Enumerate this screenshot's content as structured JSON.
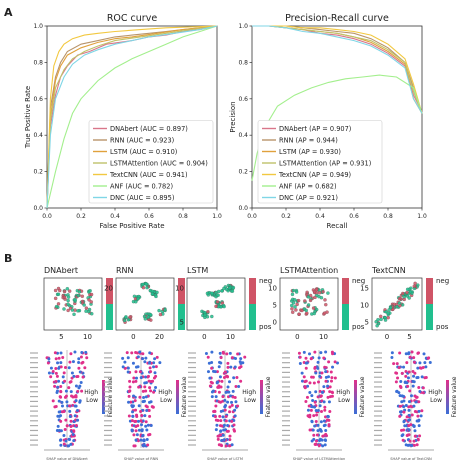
{
  "panel_a_label": "A",
  "panel_b_label": "B",
  "colors": {
    "DNAbert": "#d9768a",
    "RNN": "#b8946a",
    "LSTM": "#e0a13c",
    "LSTMAttention": "#bfc26a",
    "TextCNN": "#f2c840",
    "ANF": "#a3ef8d",
    "DNC": "#7fd6e6",
    "neg": "#cf5466",
    "pos": "#21bf8e",
    "dot_blue": "#3b6fd6",
    "dot_pink": "#e0308a"
  },
  "chart_data": [
    {
      "type": "line",
      "title": "ROC curve",
      "xlabel": "False Positive Rate",
      "ylabel": "True Positive Rate",
      "xlim": [
        0,
        1
      ],
      "ylim": [
        0,
        1
      ],
      "xticks": [
        "0.0",
        "0.2",
        "0.4",
        "0.6",
        "0.8",
        "1.0"
      ],
      "yticks": [
        "0.0",
        "0.2",
        "0.4",
        "0.6",
        "0.8",
        "1.0"
      ],
      "legend_placement": "lower-right",
      "series": [
        {
          "name": "DNAbert (AUC = 0.897)",
          "key": "DNAbert",
          "x": [
            0,
            0.02,
            0.05,
            0.08,
            0.12,
            0.18,
            0.25,
            0.35,
            0.5,
            0.6,
            0.7,
            0.8,
            0.9,
            1.0
          ],
          "y": [
            0,
            0.45,
            0.62,
            0.72,
            0.78,
            0.84,
            0.86,
            0.9,
            0.92,
            0.94,
            0.95,
            0.97,
            0.98,
            1.0
          ]
        },
        {
          "name": "RNN (AUC = 0.923)",
          "key": "RNN",
          "x": [
            0,
            0.02,
            0.05,
            0.08,
            0.12,
            0.2,
            0.3,
            0.4,
            0.5,
            0.6,
            0.7,
            0.8,
            1.0
          ],
          "y": [
            0,
            0.55,
            0.72,
            0.8,
            0.86,
            0.9,
            0.92,
            0.94,
            0.95,
            0.96,
            0.97,
            0.98,
            1.0
          ]
        },
        {
          "name": "LSTM (AUC = 0.910)",
          "key": "LSTM",
          "x": [
            0,
            0.02,
            0.05,
            0.08,
            0.12,
            0.2,
            0.3,
            0.4,
            0.5,
            0.65,
            0.8,
            1.0
          ],
          "y": [
            0,
            0.5,
            0.7,
            0.78,
            0.84,
            0.88,
            0.91,
            0.93,
            0.94,
            0.96,
            0.98,
            1.0
          ]
        },
        {
          "name": "LSTMAttention (AUC = 0.904)",
          "key": "LSTMAttention",
          "x": [
            0,
            0.02,
            0.05,
            0.1,
            0.15,
            0.22,
            0.3,
            0.4,
            0.55,
            0.7,
            0.85,
            1.0
          ],
          "y": [
            0,
            0.48,
            0.66,
            0.76,
            0.82,
            0.86,
            0.89,
            0.92,
            0.94,
            0.96,
            0.98,
            1.0
          ]
        },
        {
          "name": "TextCNN (AUC = 0.941)",
          "key": "TextCNN",
          "x": [
            0,
            0.02,
            0.04,
            0.07,
            0.1,
            0.15,
            0.22,
            0.3,
            0.4,
            0.55,
            0.7,
            1.0
          ],
          "y": [
            0,
            0.6,
            0.78,
            0.86,
            0.9,
            0.93,
            0.95,
            0.96,
            0.97,
            0.98,
            0.99,
            1.0
          ]
        },
        {
          "name": "ANF (AUC = 0.782)",
          "key": "ANF",
          "x": [
            0,
            0.05,
            0.1,
            0.15,
            0.2,
            0.3,
            0.4,
            0.5,
            0.6,
            0.7,
            0.8,
            0.9,
            1.0
          ],
          "y": [
            0,
            0.2,
            0.38,
            0.52,
            0.6,
            0.7,
            0.77,
            0.82,
            0.86,
            0.9,
            0.94,
            0.97,
            1.0
          ]
        },
        {
          "name": "DNC (AUC = 0.895)",
          "key": "DNC",
          "x": [
            0,
            0.02,
            0.05,
            0.1,
            0.15,
            0.22,
            0.3,
            0.4,
            0.5,
            0.6,
            0.75,
            0.9,
            1.0
          ],
          "y": [
            0,
            0.4,
            0.6,
            0.72,
            0.79,
            0.84,
            0.87,
            0.9,
            0.92,
            0.94,
            0.96,
            0.98,
            1.0
          ]
        }
      ]
    },
    {
      "type": "line",
      "title": "Precision-Recall curve",
      "xlabel": "Recall",
      "ylabel": "Precision",
      "xlim": [
        0,
        1
      ],
      "ylim": [
        0,
        1
      ],
      "xticks": [
        "0.0",
        "0.2",
        "0.4",
        "0.6",
        "0.8",
        "1.0"
      ],
      "yticks": [
        "0.0",
        "0.2",
        "0.4",
        "0.6",
        "0.8",
        "1.0"
      ],
      "legend_placement": "lower-left",
      "series": [
        {
          "name": "DNAbert (AP = 0.907)",
          "key": "DNAbert",
          "x": [
            0,
            0.1,
            0.2,
            0.3,
            0.4,
            0.5,
            0.6,
            0.7,
            0.8,
            0.9,
            0.95,
            1.0
          ],
          "y": [
            1,
            1,
            0.99,
            0.98,
            0.96,
            0.95,
            0.93,
            0.9,
            0.85,
            0.78,
            0.62,
            0.53
          ]
        },
        {
          "name": "RNN (AP = 0.944)",
          "key": "RNN",
          "x": [
            0,
            0.1,
            0.2,
            0.3,
            0.4,
            0.5,
            0.6,
            0.7,
            0.8,
            0.9,
            0.95,
            1.0
          ],
          "y": [
            1,
            1,
            1,
            0.99,
            0.98,
            0.97,
            0.96,
            0.93,
            0.88,
            0.8,
            0.66,
            0.52
          ]
        },
        {
          "name": "LSTM (AP = 0.930)",
          "key": "LSTM",
          "x": [
            0,
            0.1,
            0.2,
            0.3,
            0.4,
            0.5,
            0.6,
            0.7,
            0.8,
            0.9,
            0.95,
            1.0
          ],
          "y": [
            1,
            1,
            0.99,
            0.98,
            0.97,
            0.96,
            0.94,
            0.91,
            0.86,
            0.79,
            0.6,
            0.52
          ]
        },
        {
          "name": "LSTMAttention (AP = 0.931)",
          "key": "LSTMAttention",
          "x": [
            0,
            0.1,
            0.2,
            0.3,
            0.4,
            0.5,
            0.6,
            0.7,
            0.8,
            0.9,
            0.95,
            1.0
          ],
          "y": [
            1,
            1,
            0.99,
            0.98,
            0.97,
            0.96,
            0.94,
            0.92,
            0.87,
            0.8,
            0.64,
            0.52
          ]
        },
        {
          "name": "TextCNN (AP = 0.949)",
          "key": "TextCNN",
          "x": [
            0,
            0.1,
            0.2,
            0.3,
            0.4,
            0.5,
            0.6,
            0.7,
            0.8,
            0.9,
            0.95,
            1.0
          ],
          "y": [
            1,
            1,
            1,
            0.99,
            0.99,
            0.98,
            0.97,
            0.95,
            0.9,
            0.82,
            0.68,
            0.52
          ]
        },
        {
          "name": "ANF (AP = 0.682)",
          "key": "ANF",
          "x": [
            0,
            0.03,
            0.08,
            0.15,
            0.25,
            0.35,
            0.45,
            0.55,
            0.65,
            0.75,
            0.85,
            0.95,
            1.0
          ],
          "y": [
            0.15,
            0.3,
            0.45,
            0.56,
            0.62,
            0.66,
            0.69,
            0.71,
            0.72,
            0.73,
            0.72,
            0.66,
            0.52
          ]
        },
        {
          "name": "DNC (AP = 0.921)",
          "key": "DNC",
          "x": [
            0,
            0.1,
            0.2,
            0.3,
            0.4,
            0.5,
            0.6,
            0.7,
            0.8,
            0.9,
            0.95,
            1.0
          ],
          "y": [
            1,
            1,
            0.99,
            0.97,
            0.96,
            0.94,
            0.92,
            0.89,
            0.84,
            0.77,
            0.6,
            0.52
          ]
        }
      ]
    },
    {
      "type": "scatter",
      "title": "DNAbert",
      "xticks": [
        "5",
        "10"
      ],
      "yticks": [],
      "colorbar": {
        "top": "neg",
        "bottom": "pos"
      }
    },
    {
      "type": "scatter",
      "title": "RNN",
      "xticks": [
        "0",
        "20"
      ],
      "yticks": [
        "20"
      ],
      "colorbar": {
        "top": "neg",
        "bottom": "pos"
      }
    },
    {
      "type": "scatter",
      "title": "LSTM",
      "xticks": [
        "0",
        "10"
      ],
      "yticks": [
        "10",
        "5"
      ],
      "colorbar": {
        "top": "neg",
        "bottom": "pos"
      }
    },
    {
      "type": "scatter",
      "title": "LSTMAttention",
      "xticks": [
        "0",
        "10"
      ],
      "yticks": [
        "10",
        "5",
        "0"
      ],
      "colorbar": {
        "top": "neg",
        "bottom": "pos"
      }
    },
    {
      "type": "scatter",
      "title": "TextCNN",
      "xticks": [
        "0",
        "5"
      ],
      "yticks": [
        "15",
        "10",
        "5"
      ],
      "colorbar": {
        "top": "neg",
        "bottom": "pos"
      }
    }
  ],
  "shap": {
    "colorbar_high": "High",
    "colorbar_low": "Low",
    "colorbar_label": "Feature value",
    "xlabels": [
      "SHAP value of DNAbert",
      "SHAP value of RNN",
      "SHAP value of LSTM",
      "SHAP value of LSTMAttention",
      "SHAP value of TextCNN"
    ]
  }
}
